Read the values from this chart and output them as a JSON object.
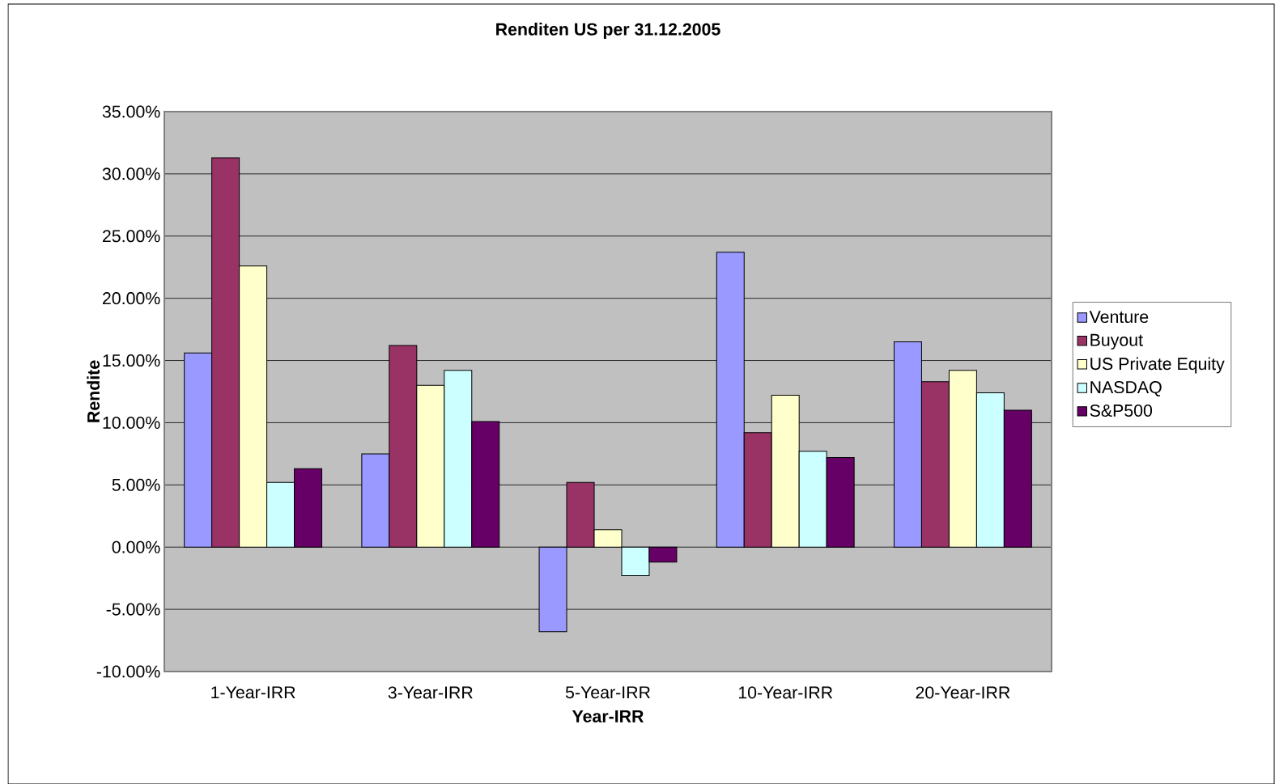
{
  "chart_data": {
    "type": "bar",
    "title": "Renditen US per 31.12.2005",
    "xlabel": "Year-IRR",
    "ylabel": "Rendite",
    "categories": [
      "1-Year-IRR",
      "3-Year-IRR",
      "5-Year-IRR",
      "10-Year-IRR",
      "20-Year-IRR"
    ],
    "series": [
      {
        "name": "Venture",
        "color": "#9999ff",
        "values": [
          15.6,
          7.5,
          -6.8,
          23.7,
          16.5
        ]
      },
      {
        "name": "Buyout",
        "color": "#993366",
        "values": [
          31.3,
          16.2,
          5.2,
          9.2,
          13.3
        ]
      },
      {
        "name": "US Private Equity",
        "color": "#ffffcc",
        "values": [
          22.6,
          13.0,
          1.4,
          12.2,
          14.2
        ]
      },
      {
        "name": "NASDAQ",
        "color": "#ccffff",
        "values": [
          5.2,
          14.2,
          -2.3,
          7.7,
          12.4
        ]
      },
      {
        "name": "S&P500",
        "color": "#660066",
        "values": [
          6.3,
          10.1,
          -1.2,
          7.2,
          11.0
        ]
      }
    ],
    "ylim": [
      -10,
      35
    ],
    "yticks": [
      {
        "value": -10,
        "label": "-10.00%"
      },
      {
        "value": -5,
        "label": "-5.00%"
      },
      {
        "value": 0,
        "label": "0.00%"
      },
      {
        "value": 5,
        "label": "5.00%"
      },
      {
        "value": 10,
        "label": "10.00%"
      },
      {
        "value": 15,
        "label": "15.00%"
      },
      {
        "value": 20,
        "label": "20.00%"
      },
      {
        "value": 25,
        "label": "25.00%"
      },
      {
        "value": 30,
        "label": "30.00%"
      },
      {
        "value": 35,
        "label": "35.00%"
      }
    ],
    "grid": "y",
    "legend": "right"
  }
}
